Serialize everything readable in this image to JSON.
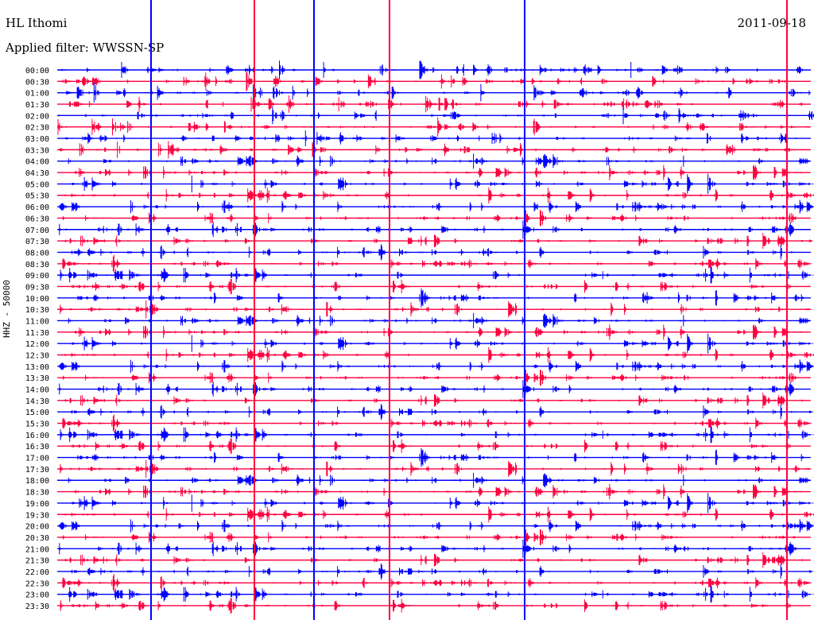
{
  "header": {
    "station": "HL Ithomi",
    "date": "2011-09-18",
    "filter_text": "Applied filter: WWSSN-SP"
  },
  "chart_data": {
    "type": "line",
    "title": "HL Ithomi",
    "channel_label": "HHZ - 50000",
    "trace_colors": [
      "#0000ff",
      "#ff0040"
    ],
    "row_labels": [
      "00:00",
      "00:30",
      "01:00",
      "01:30",
      "02:00",
      "02:30",
      "03:00",
      "03:30",
      "04:00",
      "04:30",
      "05:00",
      "05:30",
      "06:00",
      "06:30",
      "07:00",
      "07:30",
      "08:00",
      "08:30",
      "09:00",
      "09:30",
      "10:00",
      "10:30",
      "11:00",
      "11:30",
      "12:00",
      "12:30",
      "13:00",
      "13:30",
      "14:00",
      "14:30",
      "15:00",
      "15:30",
      "16:00",
      "16:30",
      "17:00",
      "17:30",
      "18:00",
      "18:30",
      "19:00",
      "19:30",
      "20:00",
      "20:30",
      "21:00",
      "21:30",
      "22:00",
      "22:30",
      "23:00",
      "23:30"
    ],
    "vertical_spikes_minutes": [
      4,
      15,
      55,
      76,
      91,
      136,
      150,
      215
    ]
  }
}
